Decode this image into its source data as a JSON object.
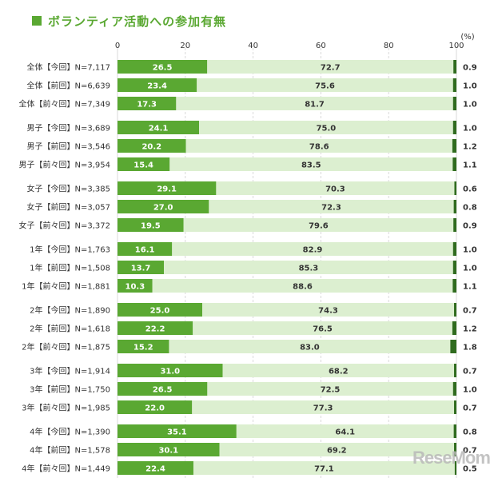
{
  "title": "ボランティア活動への参加有無",
  "chart_data": {
    "type": "bar",
    "stacked": true,
    "orientation": "horizontal",
    "unit": "(%)",
    "xlim": [
      0,
      100
    ],
    "xticks": [
      "0",
      "20",
      "40",
      "60",
      "80",
      "100"
    ],
    "colors": [
      "#5aa832",
      "#dcefd0",
      "#2f6b1e"
    ],
    "groups": [
      {
        "rows": [
          {
            "label": "全体【今回】N=7,117",
            "values": [
              26.5,
              72.7,
              0.9
            ]
          },
          {
            "label": "全体【前回】N=6,639",
            "values": [
              23.4,
              75.6,
              1.0
            ]
          },
          {
            "label": "全体【前々回】N=7,349",
            "values": [
              17.3,
              81.7,
              1.0
            ]
          }
        ]
      },
      {
        "rows": [
          {
            "label": "男子【今回】N=3,689",
            "values": [
              24.1,
              75.0,
              1.0
            ]
          },
          {
            "label": "男子【前回】N=3,546",
            "values": [
              20.2,
              78.6,
              1.2
            ]
          },
          {
            "label": "男子【前々回】N=3,954",
            "values": [
              15.4,
              83.5,
              1.1
            ]
          }
        ]
      },
      {
        "rows": [
          {
            "label": "女子【今回】N=3,385",
            "values": [
              29.1,
              70.3,
              0.6
            ]
          },
          {
            "label": "女子【前回】N=3,057",
            "values": [
              27.0,
              72.3,
              0.8
            ]
          },
          {
            "label": "女子【前々回】N=3,372",
            "values": [
              19.5,
              79.6,
              0.9
            ]
          }
        ]
      },
      {
        "rows": [
          {
            "label": "1年【今回】N=1,763",
            "values": [
              16.1,
              82.9,
              1.0
            ]
          },
          {
            "label": "1年【前回】N=1,508",
            "values": [
              13.7,
              85.3,
              1.0
            ]
          },
          {
            "label": "1年【前々回】N=1,881",
            "values": [
              10.3,
              88.6,
              1.1
            ]
          }
        ]
      },
      {
        "rows": [
          {
            "label": "2年【今回】N=1,890",
            "values": [
              25.0,
              74.3,
              0.7
            ]
          },
          {
            "label": "2年【前回】N=1,618",
            "values": [
              22.2,
              76.5,
              1.2
            ]
          },
          {
            "label": "2年【前々回】N=1,875",
            "values": [
              15.2,
              83.0,
              1.8
            ]
          }
        ]
      },
      {
        "rows": [
          {
            "label": "3年【今回】N=1,914",
            "values": [
              31.0,
              68.2,
              0.7
            ]
          },
          {
            "label": "3年【前回】N=1,750",
            "values": [
              26.5,
              72.5,
              1.0
            ]
          },
          {
            "label": "3年【前々回】N=1,985",
            "values": [
              22.0,
              77.3,
              0.7
            ]
          }
        ]
      },
      {
        "rows": [
          {
            "label": "4年【今回】N=1,390",
            "values": [
              35.1,
              64.1,
              0.8
            ]
          },
          {
            "label": "4年【前回】N=1,578",
            "values": [
              30.1,
              69.2,
              0.7
            ]
          },
          {
            "label": "4年【前々回】N=1,449",
            "values": [
              22.4,
              77.1,
              0.5
            ]
          }
        ]
      }
    ]
  },
  "watermark": "ReseMom"
}
